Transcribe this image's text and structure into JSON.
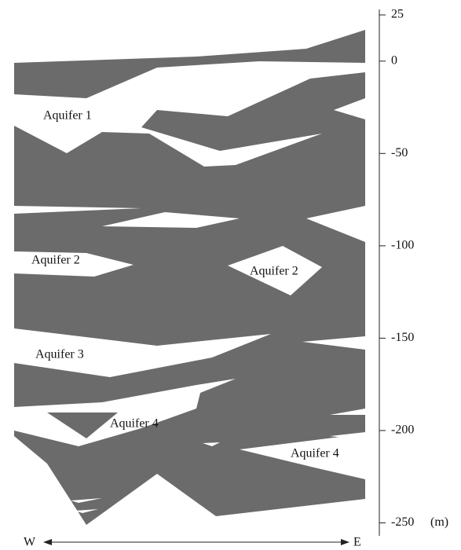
{
  "depth_axis": {
    "range": [
      25,
      -250
    ],
    "ticks": [
      25,
      0,
      -50,
      -100,
      -150,
      -200,
      -250
    ],
    "unit": "(m)"
  },
  "direction": {
    "west": "W",
    "east": "E"
  },
  "labels": [
    "Aquifer 1",
    "Aquifer 2",
    "Aquifer 2",
    "Aquifer 3",
    "Aquifer 4",
    "Aquifer 4"
  ]
}
